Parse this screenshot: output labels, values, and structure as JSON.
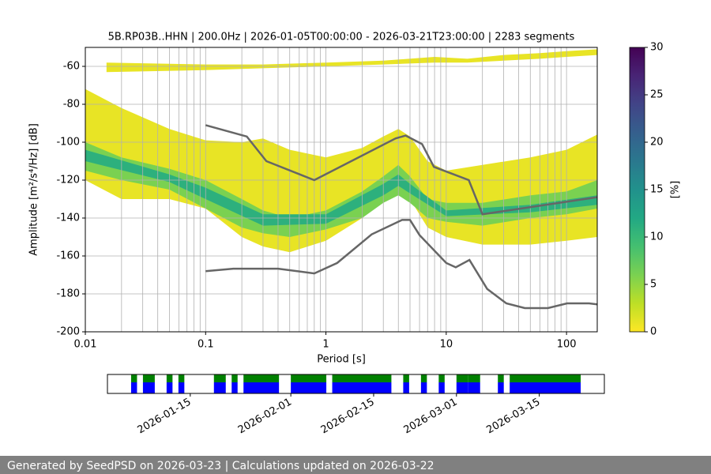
{
  "chart_data": [
    {
      "type": "psd",
      "title": "5B.RP03B..HHN | 200.0Hz | 2026-01-05T00:00:00 - 2026-03-21T23:00:00 | 2283 segments",
      "xlabel": "Period [s]",
      "ylabel": "Amplitude [m²/s⁴/Hz] [dB]",
      "x_scale": "log",
      "xlim": [
        0.01,
        180
      ],
      "xticks": [
        0.01,
        0.1,
        1,
        10,
        100
      ],
      "ylim": [
        -200,
        -50
      ],
      "yticks": [
        -200,
        -180,
        -160,
        -140,
        -120,
        -100,
        -80,
        -60
      ],
      "grid": true,
      "minor_grid": true,
      "colorbar": {
        "label": "[%]",
        "lim": [
          0,
          30
        ],
        "ticks": [
          0,
          5,
          10,
          15,
          20,
          25,
          30
        ],
        "colormap": "viridis_r"
      },
      "density_bands": [
        {
          "percent": 1,
          "x": [
            0.015,
            0.1,
            0.3,
            1,
            3,
            8,
            15,
            30,
            60,
            100,
            180
          ],
          "high": [
            -58,
            -59,
            -59,
            -58,
            -57,
            -55,
            -56,
            -54,
            -53,
            -52,
            -51
          ],
          "low": [
            -63,
            -62,
            -61,
            -60,
            -59,
            -58,
            -58,
            -57,
            -56,
            -55,
            -54
          ]
        },
        {
          "percent": 1,
          "x": [
            0.01,
            0.02,
            0.05,
            0.1,
            0.2,
            0.3,
            0.5,
            1,
            2,
            3,
            4,
            5,
            7,
            10,
            20,
            50,
            100,
            180
          ],
          "high": [
            -72,
            -82,
            -93,
            -99,
            -100,
            -98,
            -104,
            -108,
            -103,
            -97,
            -93,
            -97,
            -110,
            -115,
            -112,
            -108,
            -104,
            -96
          ],
          "low": [
            -120,
            -130,
            -130,
            -135,
            -150,
            -155,
            -158,
            -152,
            -140,
            -130,
            -125,
            -130,
            -145,
            -150,
            -154,
            -154,
            -152,
            -150
          ]
        },
        {
          "percent": 6,
          "x": [
            0.01,
            0.02,
            0.05,
            0.1,
            0.2,
            0.3,
            0.5,
            1,
            2,
            3,
            4,
            5,
            7,
            10,
            20,
            50,
            100,
            180
          ],
          "high": [
            -100,
            -108,
            -114,
            -120,
            -130,
            -136,
            -140,
            -136,
            -126,
            -118,
            -112,
            -118,
            -130,
            -132,
            -132,
            -128,
            -126,
            -120
          ],
          "low": [
            -115,
            -120,
            -125,
            -135,
            -145,
            -148,
            -150,
            -146,
            -140,
            -132,
            -128,
            -132,
            -140,
            -142,
            -144,
            -140,
            -138,
            -135
          ]
        },
        {
          "percent": 11,
          "x": [
            0.01,
            0.05,
            0.1,
            0.3,
            1,
            3,
            4,
            5,
            10,
            50,
            180
          ],
          "high": [
            -104,
            -117,
            -124,
            -138,
            -138,
            -122,
            -117,
            -122,
            -136,
            -133,
            -128
          ],
          "low": [
            -110,
            -121,
            -130,
            -144,
            -143,
            -128,
            -123,
            -127,
            -139,
            -137,
            -133
          ]
        }
      ],
      "noise_models": [
        {
          "color": "#666666",
          "x": [
            0.1,
            0.22,
            0.32,
            0.8,
            3.8,
            4.6,
            6.3,
            7.9,
            15.4,
            20,
            180
          ],
          "values": [
            -91,
            -97,
            -110,
            -120,
            -98,
            -96.5,
            -101,
            -113,
            -120,
            -138,
            -129
          ]
        },
        {
          "color": "#666666",
          "x": [
            0.1,
            0.17,
            0.4,
            0.8,
            1.24,
            2.4,
            4.3,
            5,
            6,
            10,
            12,
            15.6,
            21.9,
            31.6,
            45,
            70,
            101,
            154,
            180
          ],
          "values": [
            -168,
            -166.7,
            -166.7,
            -169.2,
            -163.7,
            -148.6,
            -141,
            -141,
            -149,
            -163.7,
            -166,
            -162.1,
            -177.4,
            -185,
            -187.5,
            -187.5,
            -185,
            -185,
            -185.5
          ]
        }
      ]
    },
    {
      "type": "timeline",
      "xlim": [
        "2026-01-01",
        "2026-03-26"
      ],
      "xticks": [
        "2026-01-15",
        "2026-02-01",
        "2026-02-15",
        "2026-03-01",
        "2026-03-15"
      ],
      "colors": [
        "#008000",
        "#0000ff"
      ],
      "segments": [
        [
          "2026-01-05",
          "2026-01-06"
        ],
        [
          "2026-01-07",
          "2026-01-09"
        ],
        [
          "2026-01-11",
          "2026-01-12"
        ],
        [
          "2026-01-13",
          "2026-01-14"
        ],
        [
          "2026-01-19",
          "2026-01-21"
        ],
        [
          "2026-01-22",
          "2026-01-23"
        ],
        [
          "2026-01-24",
          "2026-01-30"
        ],
        [
          "2026-02-01",
          "2026-02-07"
        ],
        [
          "2026-02-08",
          "2026-02-18"
        ],
        [
          "2026-02-20",
          "2026-02-21"
        ],
        [
          "2026-02-23",
          "2026-02-24"
        ],
        [
          "2026-02-26",
          "2026-02-27"
        ],
        [
          "2026-03-01",
          "2026-03-03"
        ],
        [
          "2026-03-03",
          "2026-03-05"
        ],
        [
          "2026-03-08",
          "2026-03-09"
        ],
        [
          "2026-03-10",
          "2026-03-22"
        ]
      ]
    }
  ],
  "footer": "Generated by SeedPSD on 2026-03-23 | Calculations updated on 2026-03-22"
}
